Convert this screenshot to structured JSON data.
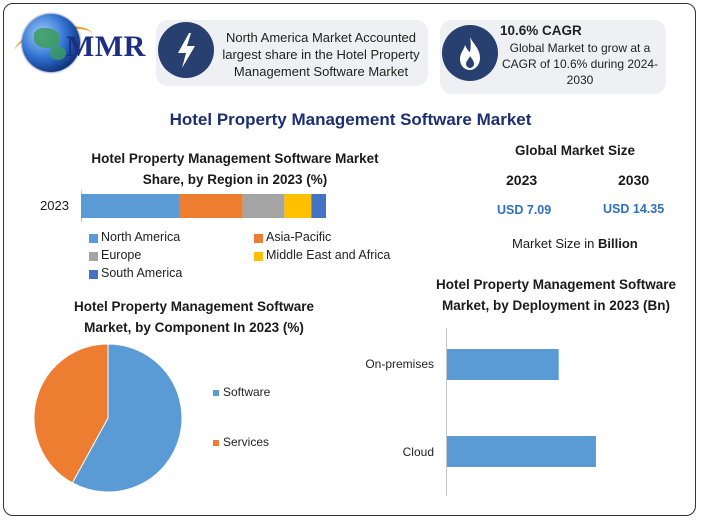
{
  "logo": {
    "text": "MMR"
  },
  "callouts": [
    {
      "icon": "lightning-bolt-icon",
      "text": "North America Market Accounted largest share in the Hotel Property Management Software Market"
    },
    {
      "icon": "flame-icon",
      "heading": "10.6% CAGR",
      "text": "Global Market to grow at a CAGR of 10.6% during 2024-2030"
    }
  ],
  "title": "Hotel Property Management Software Market",
  "market_size": {
    "heading": "Global Market Size",
    "year1": "2023",
    "year2": "2030",
    "value1": "USD 7.09",
    "value2": "USD 14.35",
    "note_prefix": "Market Size in ",
    "note_unit": "Billion"
  },
  "colors": {
    "accent_blue": "#2f6fc0",
    "north_america": "#5b9bd5",
    "asia_pacific": "#ed7d31",
    "europe": "#a5a5a5",
    "middle_east_africa": "#ffc000",
    "south_america": "#4472c4",
    "software": "#5b9bd5",
    "services": "#ed7d31",
    "bar": "#5b9bd5"
  },
  "chart_data": [
    {
      "type": "bar",
      "orientation": "horizontal",
      "stacked": true,
      "title": "Hotel Property Management Software Market Share, by Region in 2023 (%)",
      "categories": [
        "2023"
      ],
      "series": [
        {
          "name": "North America",
          "values": [
            40
          ]
        },
        {
          "name": "Asia-Pacific",
          "values": [
            26
          ]
        },
        {
          "name": "Europe",
          "values": [
            17
          ]
        },
        {
          "name": "Middle East and Africa",
          "values": [
            11
          ]
        },
        {
          "name": "South America",
          "values": [
            6
          ]
        }
      ],
      "xlim": [
        0,
        100
      ],
      "legend": "bottom",
      "grid": false
    },
    {
      "type": "pie",
      "title": "Hotel Property Management Software Market, by Component In 2023 (%)",
      "categories": [
        "Software",
        "Services"
      ],
      "values": [
        58,
        42
      ],
      "legend": "right"
    },
    {
      "type": "bar",
      "orientation": "horizontal",
      "title": "Hotel Property Management Software Market, by Deployment in 2023 (Bn)",
      "categories": [
        "On-premises",
        "Cloud"
      ],
      "values": [
        2.85,
        3.8
      ],
      "xlim": [
        0,
        5
      ],
      "grid": false
    }
  ]
}
